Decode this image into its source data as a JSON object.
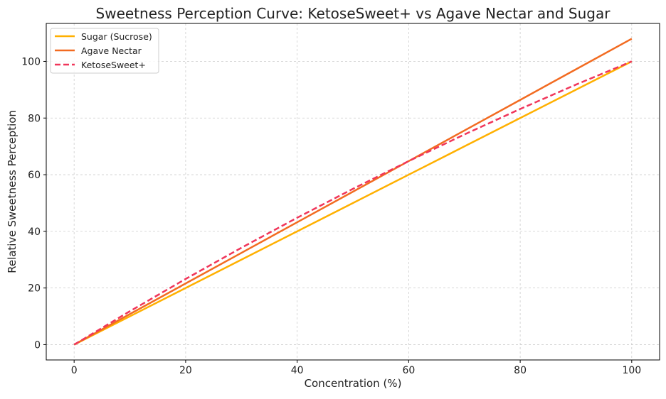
{
  "chart_data": {
    "type": "line",
    "title": "Sweetness Perception Curve: KetoseSweet+ vs Agave Nectar and Sugar",
    "xlabel": "Concentration (%)",
    "ylabel": "Relative Sweetness Perception",
    "xlim": [
      -5,
      105
    ],
    "ylim": [
      -5.4,
      113.4
    ],
    "xticks": [
      0,
      20,
      40,
      60,
      80,
      100
    ],
    "yticks": [
      0,
      20,
      40,
      60,
      80,
      100
    ],
    "grid": true,
    "legend_position": "top-left",
    "x": [
      0,
      10,
      20,
      30,
      40,
      50,
      60,
      70,
      80,
      90,
      100
    ],
    "series": [
      {
        "name": "Sugar (Sucrose)",
        "color": "#FFB000",
        "dash": false,
        "values": [
          0,
          10,
          20,
          30,
          40,
          50,
          60,
          70,
          80,
          90,
          100
        ]
      },
      {
        "name": "Agave Nectar",
        "color": "#F26B21",
        "dash": false,
        "values": [
          0,
          10.8,
          21.6,
          32.4,
          43.2,
          54,
          64.8,
          75.6,
          86.4,
          97.2,
          108
        ]
      },
      {
        "name": "KetoseSweet+",
        "color": "#F0365A",
        "dash": true,
        "values": [
          0,
          11.8,
          23.2,
          34.2,
          44.8,
          55,
          64.8,
          74.2,
          83.2,
          91.8,
          100
        ]
      }
    ]
  }
}
